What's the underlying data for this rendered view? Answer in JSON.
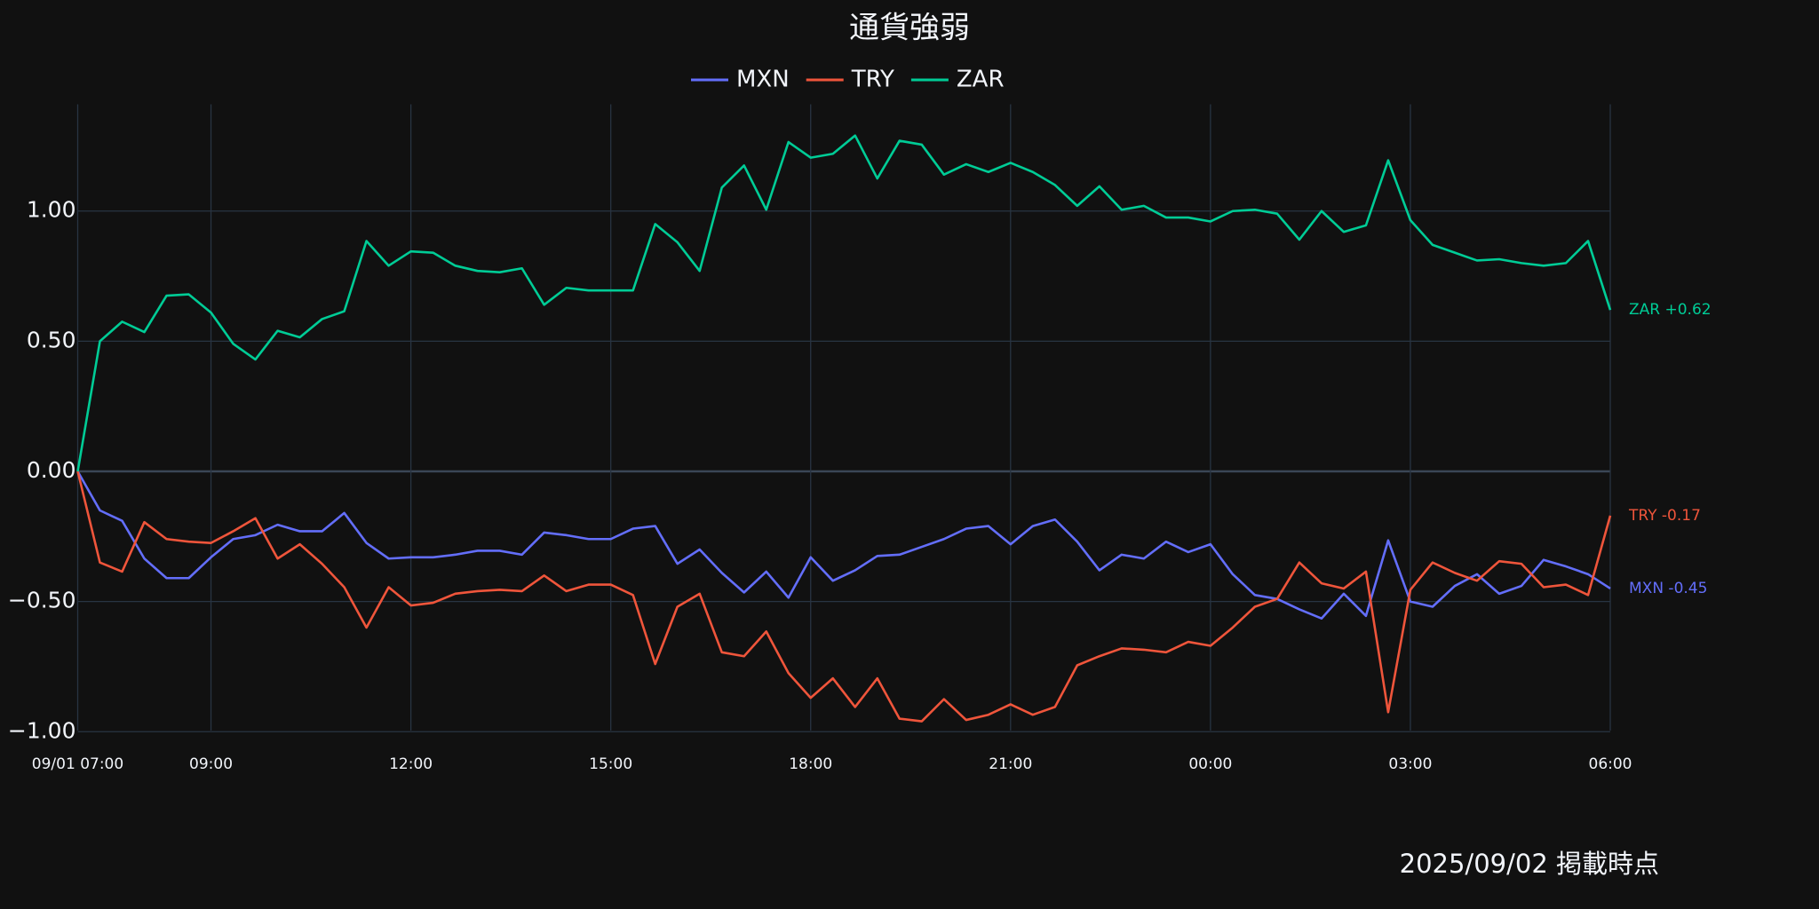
{
  "chart_data": {
    "type": "line",
    "title": "通貨強弱",
    "footer": "2025/09/02 掲載時点",
    "x": [
      0,
      20,
      40,
      60,
      80,
      100,
      120,
      140,
      160,
      180,
      200,
      220,
      240,
      260,
      280,
      300,
      320,
      340,
      360,
      380,
      400,
      420,
      440,
      460,
      480,
      500,
      520,
      540,
      560,
      580,
      600,
      620,
      640,
      660,
      680,
      700,
      720,
      740,
      760,
      780,
      800,
      820,
      840,
      860,
      880,
      900,
      920,
      940,
      960,
      980,
      1000,
      1020,
      1040,
      1060,
      1080,
      1100,
      1120,
      1140,
      1160,
      1180,
      1200,
      1220,
      1240,
      1260,
      1280,
      1300,
      1320,
      1340,
      1360,
      1380
    ],
    "xlim": [
      0,
      1380
    ],
    "xticks": [
      {
        "value": 0,
        "label": "09/01 07:00"
      },
      {
        "value": 120,
        "label": "09:00"
      },
      {
        "value": 300,
        "label": "12:00"
      },
      {
        "value": 480,
        "label": "15:00"
      },
      {
        "value": 660,
        "label": "18:00"
      },
      {
        "value": 840,
        "label": "21:00"
      },
      {
        "value": 1020,
        "label": "00:00"
      },
      {
        "value": 1200,
        "label": "03:00"
      },
      {
        "value": 1380,
        "label": "06:00"
      }
    ],
    "ylim": [
      -1.04,
      1.41
    ],
    "yticks": [
      {
        "value": -1,
        "label": "−1.00"
      },
      {
        "value": -0.5,
        "label": "−0.50"
      },
      {
        "value": 0,
        "label": "0.00"
      },
      {
        "value": 0.5,
        "label": "0.50"
      },
      {
        "value": 1,
        "label": "1.00"
      }
    ],
    "grid": true,
    "legend": "top",
    "series": [
      {
        "name": "MXN",
        "color": "#636efa",
        "end_label": "MXN -0.45",
        "values": [
          0,
          -0.15,
          -0.19,
          -0.335,
          -0.41,
          -0.41,
          -0.33,
          -0.26,
          -0.245,
          -0.205,
          -0.23,
          -0.23,
          -0.16,
          -0.275,
          -0.335,
          -0.33,
          -0.33,
          -0.32,
          -0.305,
          -0.305,
          -0.32,
          -0.235,
          -0.245,
          -0.26,
          -0.26,
          -0.22,
          -0.21,
          -0.355,
          -0.3,
          -0.39,
          -0.465,
          -0.385,
          -0.485,
          -0.33,
          -0.42,
          -0.38,
          -0.325,
          -0.32,
          -0.29,
          -0.26,
          -0.22,
          -0.21,
          -0.28,
          -0.21,
          -0.185,
          -0.27,
          -0.38,
          -0.32,
          -0.335,
          -0.27,
          -0.31,
          -0.28,
          -0.395,
          -0.475,
          -0.49,
          -0.53,
          -0.565,
          -0.47,
          -0.555,
          -0.265,
          -0.5,
          -0.52,
          -0.44,
          -0.395,
          -0.47,
          -0.44,
          -0.34,
          -0.365,
          -0.395,
          -0.45
        ]
      },
      {
        "name": "TRY",
        "color": "#ef553b",
        "end_label": "TRY -0.17",
        "values": [
          0,
          -0.35,
          -0.385,
          -0.195,
          -0.26,
          -0.27,
          -0.275,
          -0.23,
          -0.18,
          -0.335,
          -0.28,
          -0.355,
          -0.445,
          -0.6,
          -0.445,
          -0.515,
          -0.505,
          -0.47,
          -0.46,
          -0.455,
          -0.46,
          -0.4,
          -0.46,
          -0.435,
          -0.435,
          -0.475,
          -0.74,
          -0.52,
          -0.47,
          -0.695,
          -0.71,
          -0.615,
          -0.775,
          -0.87,
          -0.795,
          -0.905,
          -0.795,
          -0.95,
          -0.96,
          -0.875,
          -0.955,
          -0.935,
          -0.895,
          -0.935,
          -0.905,
          -0.745,
          -0.71,
          -0.68,
          -0.685,
          -0.695,
          -0.655,
          -0.67,
          -0.6,
          -0.52,
          -0.49,
          -0.35,
          -0.43,
          -0.45,
          -0.385,
          -0.925,
          -0.455,
          -0.35,
          -0.39,
          -0.42,
          -0.345,
          -0.355,
          -0.445,
          -0.435,
          -0.475,
          -0.17
        ]
      },
      {
        "name": "ZAR",
        "color": "#00cc96",
        "end_label": "ZAR +0.62",
        "values": [
          0,
          0.5,
          0.575,
          0.535,
          0.675,
          0.68,
          0.61,
          0.49,
          0.43,
          0.54,
          0.515,
          0.585,
          0.615,
          0.885,
          0.79,
          0.845,
          0.84,
          0.79,
          0.77,
          0.765,
          0.78,
          0.64,
          0.705,
          0.695,
          0.695,
          0.695,
          0.95,
          0.88,
          0.77,
          1.09,
          1.175,
          1.005,
          1.265,
          1.205,
          1.22,
          1.29,
          1.125,
          1.27,
          1.255,
          1.14,
          1.18,
          1.15,
          1.185,
          1.15,
          1.1,
          1.02,
          1.095,
          1.005,
          1.02,
          0.975,
          0.975,
          0.96,
          1.0,
          1.005,
          0.99,
          0.89,
          1.0,
          0.92,
          0.945,
          1.195,
          0.965,
          0.87,
          0.84,
          0.81,
          0.815,
          0.8,
          0.79,
          0.8,
          0.885,
          0.62
        ]
      }
    ]
  }
}
